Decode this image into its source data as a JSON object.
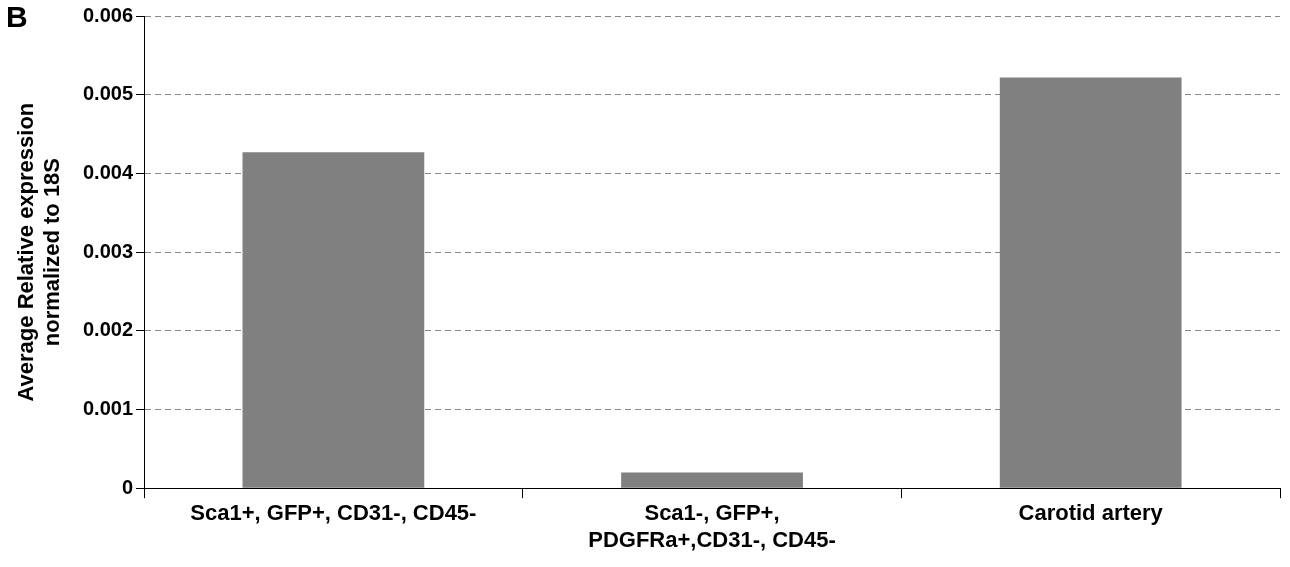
{
  "chart_data": {
    "type": "bar",
    "ylabel": "Average Relative expression normalized to 18S",
    "annotations": [
      "B"
    ],
    "categories": [
      "Sca1+, GFP+, CD31-, CD45-",
      "Sca1-, GFP+, PDGFRa+,CD31-, CD45-",
      "Carotid artery"
    ],
    "values": [
      0.00427,
      0.0002,
      0.00522
    ],
    "color": "#808080",
    "ylim": [
      0,
      0.006
    ],
    "yticks": [
      0,
      0.001,
      0.002,
      0.003,
      0.004,
      0.005,
      0.006
    ],
    "grid": "y",
    "legend": false
  }
}
